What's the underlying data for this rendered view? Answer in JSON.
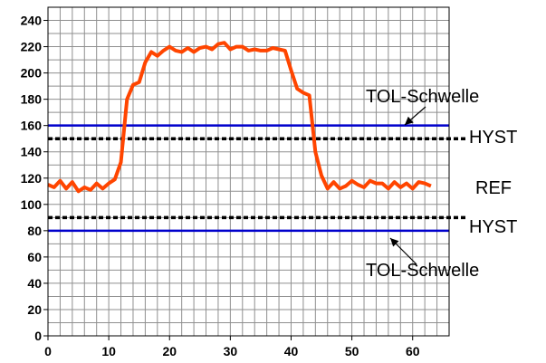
{
  "chart_data": {
    "type": "line",
    "xlim": [
      0,
      66
    ],
    "ylim": [
      0,
      250
    ],
    "x_major_ticks": [
      0,
      10,
      20,
      30,
      40,
      50,
      60
    ],
    "y_major_ticks": [
      0,
      20,
      40,
      60,
      80,
      100,
      120,
      140,
      160,
      180,
      200,
      220,
      240
    ],
    "x_minor_step": 2,
    "y_minor_step": 10,
    "grid": true,
    "series": [
      {
        "color": "#ff4500",
        "x": [
          0,
          1,
          2,
          3,
          4,
          5,
          6,
          7,
          8,
          9,
          10,
          11,
          12,
          13,
          14,
          15,
          16,
          17,
          18,
          19,
          20,
          21,
          22,
          23,
          24,
          25,
          26,
          27,
          28,
          29,
          30,
          31,
          32,
          33,
          34,
          35,
          36,
          37,
          38,
          39,
          40,
          41,
          42,
          43,
          44,
          45,
          46,
          47,
          48,
          49,
          50,
          51,
          52,
          53,
          54,
          55,
          56,
          57,
          58,
          59,
          60,
          61,
          62,
          63
        ],
        "y": [
          115,
          113,
          118,
          112,
          117,
          110,
          113,
          111,
          116,
          112,
          116,
          119,
          132,
          180,
          191,
          193,
          208,
          216,
          213,
          217,
          220,
          217,
          216,
          219,
          216,
          219,
          220,
          218,
          222,
          223,
          218,
          220,
          220,
          217,
          218,
          217,
          217,
          219,
          218,
          217,
          202,
          188,
          185,
          183,
          140,
          122,
          112,
          117,
          112,
          114,
          118,
          115,
          113,
          118,
          116,
          116,
          112,
          117,
          113,
          116,
          112,
          117,
          116,
          114
        ]
      }
    ],
    "reference_lines": [
      {
        "y": 160,
        "style": "solid",
        "color": "#0000cc"
      },
      {
        "y": 150,
        "style": "dashed",
        "color": "#000000"
      },
      {
        "y": 90,
        "style": "dashed",
        "color": "#000000"
      },
      {
        "y": 80,
        "style": "solid",
        "color": "#0000cc"
      }
    ],
    "annotations": [
      {
        "text": "TOL-Schwelle",
        "target_y": 160
      },
      {
        "text": "HYST",
        "target_y": 150
      },
      {
        "text": "REF",
        "target_y": 120
      },
      {
        "text": "HYST",
        "target_y": 90
      },
      {
        "text": "TOL-Schwelle",
        "target_y": 80
      }
    ]
  }
}
